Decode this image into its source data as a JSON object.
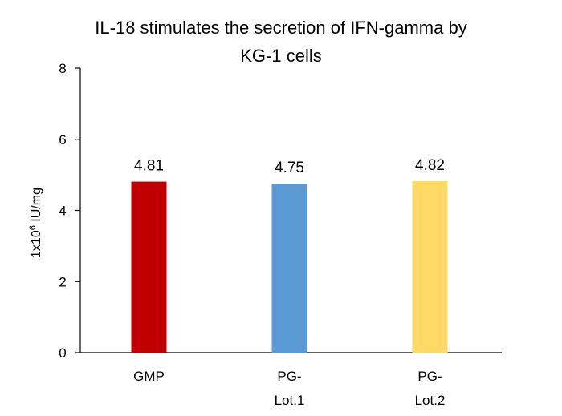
{
  "chart_data": {
    "type": "bar",
    "title": "IL-18 stimulates the secretion of IFN-gamma by KG-1 cells",
    "title_lines": [
      "IL-18 stimulates the secretion of IFN-gamma by",
      "KG-1 cells"
    ],
    "xlabel": "",
    "ylabel_base": "1x10",
    "ylabel_sup": "6",
    "ylabel_unit": " IU/mg",
    "ylim": [
      0,
      8
    ],
    "yticks": [
      0,
      2,
      4,
      6,
      8
    ],
    "grid": false,
    "legend": "none",
    "categories": [
      "GMP",
      "PG-Lot.1",
      "PG-Lot.2"
    ],
    "category_lines": [
      [
        "GMP"
      ],
      [
        "PG-",
        "Lot.1"
      ],
      [
        "PG-",
        "Lot.2"
      ]
    ],
    "values": [
      4.81,
      4.75,
      4.82
    ],
    "value_labels": [
      "4.81",
      "4.75",
      "4.82"
    ],
    "colors": [
      "#c00000",
      "#5b9bd5",
      "#ffd966"
    ]
  }
}
